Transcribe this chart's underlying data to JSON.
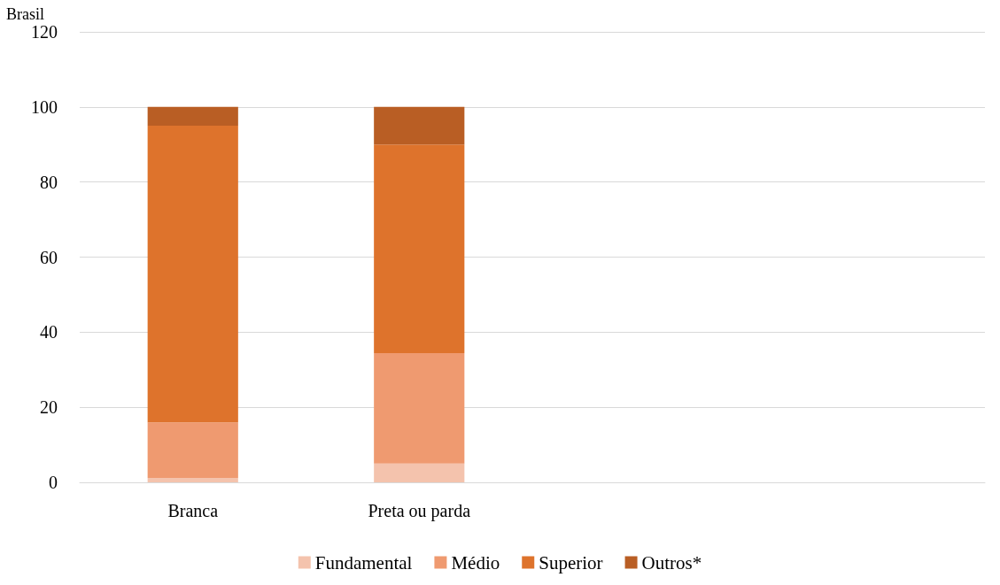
{
  "chart_data": {
    "type": "bar",
    "title": "Brasil",
    "stacked": true,
    "categories": [
      "Branca",
      "Preta ou parda",
      null,
      null
    ],
    "series": [
      {
        "name": "Fundamental",
        "color": "#f4c3ad",
        "values": [
          1.2,
          5,
          null,
          null
        ]
      },
      {
        "name": "Médio",
        "color": "#ef9a70",
        "values": [
          14.8,
          29.4,
          null,
          null
        ]
      },
      {
        "name": "Superior",
        "color": "#de732c",
        "values": [
          79,
          55.6,
          null,
          null
        ]
      },
      {
        "name": "Outros*",
        "color": "#b95e24",
        "values": [
          5,
          10,
          null,
          null
        ]
      }
    ],
    "ylim": [
      0,
      120
    ],
    "yticks": [
      0,
      20,
      40,
      60,
      80,
      100,
      120
    ],
    "grid": "y",
    "legend": "bottom"
  }
}
